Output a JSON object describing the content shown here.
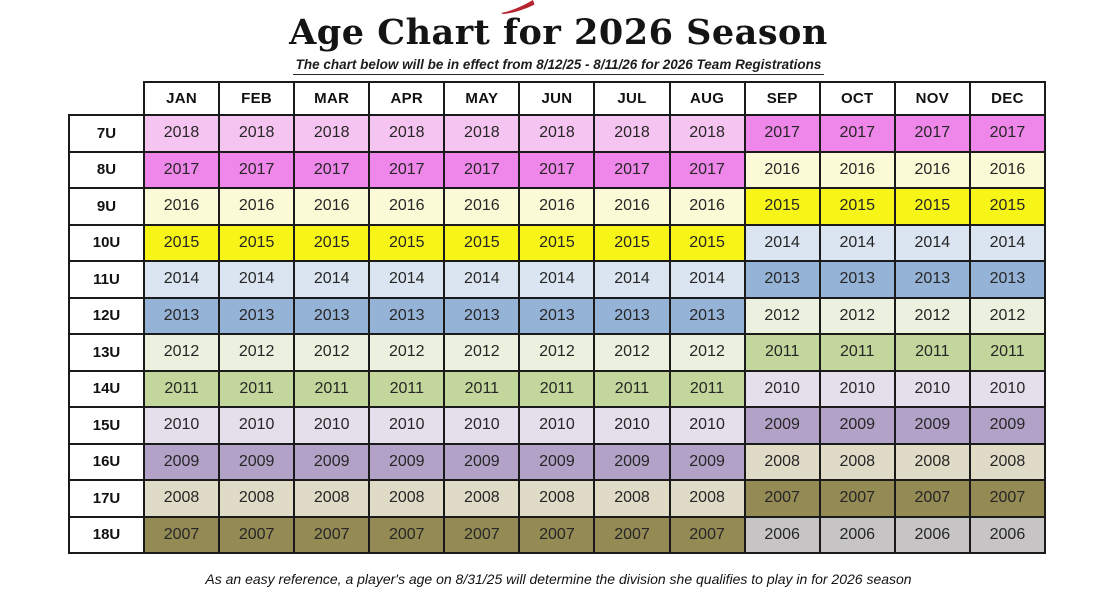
{
  "title": "Age Chart for 2026 Season",
  "subtitle": "The chart below will be in effect from 8/12/25 - 8/11/26 for 2026 Team Registrations",
  "footer_note": "As an easy reference, a player's age on 8/31/25 will determine the division she qualifies to play in for 2026 season",
  "logo": {
    "icon": "red-swoosh-fragment",
    "color": "#B5252F"
  },
  "colors": {
    "table_border": "#1A1A1A",
    "cell_text": "#262626",
    "header_bg": "#FFFFFF"
  },
  "chart_data": {
    "type": "table",
    "title": "Age Chart for 2026 Season",
    "months": [
      "JAN",
      "FEB",
      "MAR",
      "APR",
      "MAY",
      "JUN",
      "JUL",
      "AUG",
      "SEP",
      "OCT",
      "NOV",
      "DEC"
    ],
    "rows": [
      {
        "division": "7U",
        "jan_aug_year": "2018",
        "sep_dec_year": "2017",
        "jan_aug_color": "#F6C4F1",
        "sep_dec_color": "#EF86E9"
      },
      {
        "division": "8U",
        "jan_aug_year": "2017",
        "sep_dec_year": "2016",
        "jan_aug_color": "#EF86E9",
        "sep_dec_color": "#FBFAD6"
      },
      {
        "division": "9U",
        "jan_aug_year": "2016",
        "sep_dec_year": "2015",
        "jan_aug_color": "#FBFAD6",
        "sep_dec_color": "#F7F418"
      },
      {
        "division": "10U",
        "jan_aug_year": "2015",
        "sep_dec_year": "2014",
        "jan_aug_color": "#F7F418",
        "sep_dec_color": "#DAE5F1"
      },
      {
        "division": "11U",
        "jan_aug_year": "2014",
        "sep_dec_year": "2013",
        "jan_aug_color": "#DAE5F1",
        "sep_dec_color": "#95B3D7"
      },
      {
        "division": "12U",
        "jan_aug_year": "2013",
        "sep_dec_year": "2012",
        "jan_aug_color": "#95B3D7",
        "sep_dec_color": "#EBF1DE"
      },
      {
        "division": "13U",
        "jan_aug_year": "2012",
        "sep_dec_year": "2011",
        "jan_aug_color": "#EBF1DE",
        "sep_dec_color": "#C3D69B"
      },
      {
        "division": "14U",
        "jan_aug_year": "2011",
        "sep_dec_year": "2010",
        "jan_aug_color": "#C3D69B",
        "sep_dec_color": "#E5DFEC"
      },
      {
        "division": "15U",
        "jan_aug_year": "2010",
        "sep_dec_year": "2009",
        "jan_aug_color": "#E5DFEC",
        "sep_dec_color": "#B2A2C7"
      },
      {
        "division": "16U",
        "jan_aug_year": "2009",
        "sep_dec_year": "2008",
        "jan_aug_color": "#B2A2C7",
        "sep_dec_color": "#DFDBC7"
      },
      {
        "division": "17U",
        "jan_aug_year": "2008",
        "sep_dec_year": "2007",
        "jan_aug_color": "#DFDBC7",
        "sep_dec_color": "#948A54"
      },
      {
        "division": "18U",
        "jan_aug_year": "2007",
        "sep_dec_year": "2006",
        "jan_aug_color": "#948A54",
        "sep_dec_color": "#C6C4C5"
      }
    ]
  }
}
